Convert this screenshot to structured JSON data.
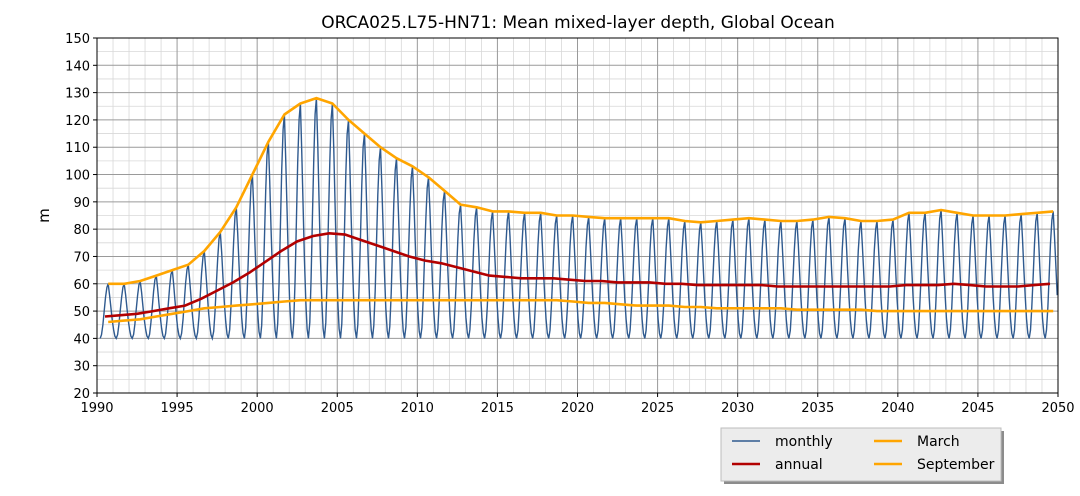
{
  "chart_data": {
    "type": "line",
    "title": "ORCA025.L75-HN71: Mean mixed-layer depth, Global Ocean",
    "xlabel": "",
    "ylabel": "m",
    "xlim": [
      1990,
      2050
    ],
    "ylim": [
      20,
      150
    ],
    "xticks": [
      1990,
      1995,
      2000,
      2005,
      2010,
      2015,
      2020,
      2025,
      2030,
      2035,
      2040,
      2045,
      2050
    ],
    "yticks": [
      20,
      30,
      40,
      50,
      60,
      70,
      80,
      90,
      100,
      110,
      120,
      130,
      140,
      150
    ],
    "grid": true,
    "legend_position": "bottom-right, below plot",
    "colors": {
      "monthly": "#2f5a8f",
      "annual": "#b20000",
      "March": "#ffa500",
      "September": "#ffa500"
    },
    "monthly_minimum": 40,
    "series": [
      {
        "name": "monthly",
        "note": "seasonal cycle: peaks near March values, troughs near monthly_minimum",
        "x": [
          1990.2
        ],
        "y": [
          40
        ]
      },
      {
        "name": "annual",
        "x": [
          1990.5,
          1991.5,
          1992.5,
          1993.5,
          1994.5,
          1995.5,
          1996.5,
          1997.5,
          1998.5,
          1999.5,
          2000.5,
          2001.5,
          2002.5,
          2003.5,
          2004.5,
          2005.5,
          2006.5,
          2007.5,
          2008.5,
          2009.5,
          2010.5,
          2011.5,
          2012.5,
          2013.5,
          2014.5,
          2015.5,
          2016.5,
          2017.5,
          2018.5,
          2019.5,
          2020.5,
          2021.5,
          2022.5,
          2023.5,
          2024.5,
          2025.5,
          2026.5,
          2027.5,
          2028.5,
          2029.5,
          2030.5,
          2031.5,
          2032.5,
          2033.5,
          2034.5,
          2035.5,
          2036.5,
          2037.5,
          2038.5,
          2039.5,
          2040.5,
          2041.5,
          2042.5,
          2043.5,
          2044.5,
          2045.5,
          2046.5,
          2047.5,
          2048.5,
          2049.5
        ],
        "y": [
          48,
          48.5,
          49,
          50,
          51,
          52,
          54.5,
          57.5,
          60.5,
          64,
          68,
          72,
          75.5,
          77.5,
          78.5,
          78,
          76,
          74,
          72,
          70,
          68.5,
          67.5,
          66,
          64.5,
          63,
          62.5,
          62,
          62,
          62,
          61.5,
          61,
          61,
          60.5,
          60.5,
          60.5,
          60,
          60,
          59.5,
          59.5,
          59.5,
          59.5,
          59.5,
          59,
          59,
          59,
          59,
          59,
          59,
          59,
          59,
          59.5,
          59.5,
          59.5,
          60,
          59.5,
          59,
          59,
          59,
          59.5,
          60
        ]
      },
      {
        "name": "March",
        "x": [
          1990.7,
          1991.7,
          1992.7,
          1993.7,
          1994.7,
          1995.7,
          1996.7,
          1997.7,
          1998.7,
          1999.7,
          2000.7,
          2001.7,
          2002.7,
          2003.7,
          2004.7,
          2005.7,
          2006.7,
          2007.7,
          2008.7,
          2009.7,
          2010.7,
          2011.7,
          2012.7,
          2013.7,
          2014.7,
          2015.7,
          2016.7,
          2017.7,
          2018.7,
          2019.7,
          2020.7,
          2021.7,
          2022.7,
          2023.7,
          2024.7,
          2025.7,
          2026.7,
          2027.7,
          2028.7,
          2029.7,
          2030.7,
          2031.7,
          2032.7,
          2033.7,
          2034.7,
          2035.7,
          2036.7,
          2037.7,
          2038.7,
          2039.7,
          2040.7,
          2041.7,
          2042.7,
          2043.7,
          2044.7,
          2045.7,
          2046.7,
          2047.7,
          2048.7,
          2049.7
        ],
        "y": [
          60,
          60,
          61,
          63,
          65,
          67,
          72,
          79,
          88,
          100,
          112,
          122,
          126,
          128,
          126,
          120,
          115,
          110,
          106,
          103,
          99,
          94,
          89,
          88,
          86.5,
          86.5,
          86,
          86,
          85,
          85,
          84.5,
          84,
          84,
          84,
          84,
          84,
          83,
          82.5,
          83,
          83.5,
          84,
          83.5,
          83,
          83,
          83.5,
          84.5,
          84,
          83,
          83,
          83.5,
          86,
          86,
          87,
          86,
          85,
          85,
          85,
          85.5,
          86,
          86.5
        ]
      },
      {
        "name": "September",
        "x": [
          1990.7,
          1991.7,
          1992.7,
          1993.7,
          1994.7,
          1995.7,
          1996.7,
          1997.7,
          1998.7,
          1999.7,
          2000.7,
          2001.7,
          2002.7,
          2003.7,
          2004.7,
          2005.7,
          2006.7,
          2007.7,
          2008.7,
          2009.7,
          2010.7,
          2011.7,
          2012.7,
          2013.7,
          2014.7,
          2015.7,
          2016.7,
          2017.7,
          2018.7,
          2019.7,
          2020.7,
          2021.7,
          2022.7,
          2023.7,
          2024.7,
          2025.7,
          2026.7,
          2027.7,
          2028.7,
          2029.7,
          2030.7,
          2031.7,
          2032.7,
          2033.7,
          2034.7,
          2035.7,
          2036.7,
          2037.7,
          2038.7,
          2039.7,
          2040.7,
          2041.7,
          2042.7,
          2043.7,
          2044.7,
          2045.7,
          2046.7,
          2047.7,
          2048.7,
          2049.7
        ],
        "y": [
          46,
          46.5,
          47,
          48,
          49,
          50,
          51,
          51.5,
          52,
          52.5,
          53,
          53.5,
          54,
          54,
          54,
          54,
          54,
          54,
          54,
          54,
          54,
          54,
          54,
          54,
          54,
          54,
          54,
          54,
          54,
          53.5,
          53,
          53,
          52.5,
          52,
          52,
          52,
          51.5,
          51.5,
          51,
          51,
          51,
          51,
          51,
          50.5,
          50.5,
          50.5,
          50.5,
          50.5,
          50,
          50,
          50,
          50,
          50,
          50,
          50,
          50,
          50,
          50,
          50,
          50
        ]
      }
    ]
  }
}
